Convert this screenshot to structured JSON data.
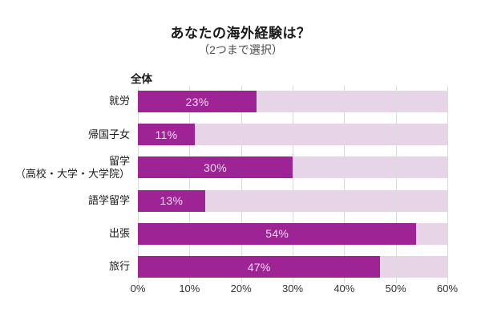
{
  "header": {
    "title": "あなたの海外経験は？",
    "subtitle": "（2つまで選択）"
  },
  "chart_data": {
    "type": "bar",
    "orientation": "horizontal",
    "title": "あなたの海外経験は？",
    "subtitle": "（2つまで選択）",
    "group_label": "全体",
    "categories": [
      "就労",
      "帰国子女",
      "留学（高校・大学・大学院）",
      "語学留学",
      "出張",
      "旅行"
    ],
    "category_lines": [
      [
        "就労"
      ],
      [
        "帰国子女"
      ],
      [
        "留学",
        "（高校・大学・大学院）"
      ],
      [
        "語学留学"
      ],
      [
        "出張"
      ],
      [
        "旅行"
      ]
    ],
    "values": [
      23,
      11,
      30,
      13,
      54,
      47
    ],
    "value_labels": [
      "23%",
      "11%",
      "30%",
      "13%",
      "54%",
      "47%"
    ],
    "unit": "%",
    "xlim": [
      0,
      60
    ],
    "x_ticks": [
      0,
      10,
      20,
      30,
      40,
      50,
      60
    ],
    "x_tick_labels": [
      "0%",
      "10%",
      "20%",
      "30%",
      "40%",
      "50%",
      "60%"
    ],
    "grid": true,
    "legend": "none",
    "colors": {
      "bar": "#9E2394",
      "track": "#E7D4E7",
      "gridline": "#DCDCDC",
      "value_text": "#F2DCEF",
      "title_text": "#1A1A1A",
      "subtitle_text": "#4D4D4D",
      "label_text": "#1A1A1A",
      "tick_text": "#333333"
    }
  }
}
